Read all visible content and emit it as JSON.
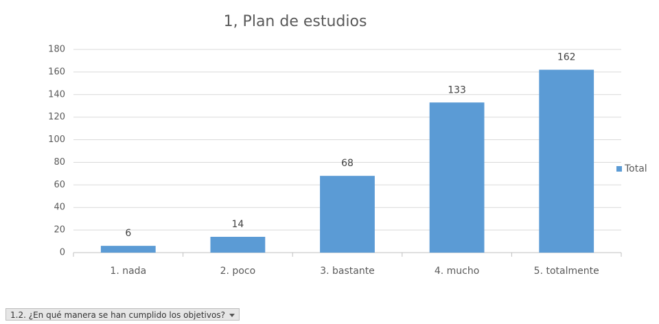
{
  "chart_data": {
    "type": "bar",
    "title": "1, Plan de estudios",
    "categories": [
      "1. nada",
      "2. poco",
      "3. bastante",
      "4. mucho",
      "5. totalmente"
    ],
    "series": [
      {
        "name": "Total",
        "color": "#5b9bd5",
        "values": [
          6,
          14,
          68,
          133,
          162
        ]
      }
    ],
    "ylim": [
      0,
      180
    ],
    "yticks": [
      0,
      20,
      40,
      60,
      80,
      100,
      120,
      140,
      160,
      180
    ],
    "grid": true,
    "legend": "right"
  },
  "filter_button": {
    "label": "1.2. ¿En qué manera se han cumplido  los objetivos?"
  }
}
